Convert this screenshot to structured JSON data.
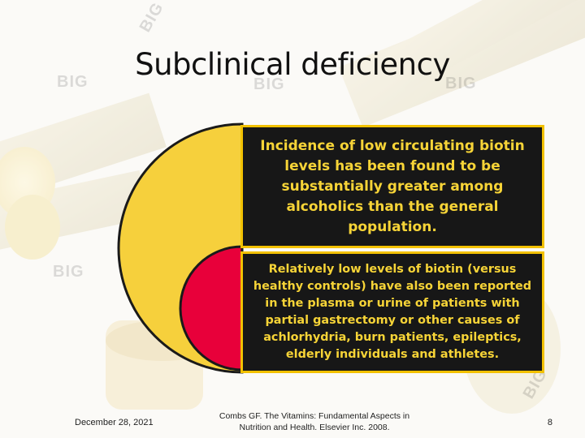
{
  "slide": {
    "title": "Subclinical deficiency",
    "box1_text": "Incidence of low circulating biotin levels has been found to be substantially greater among alcoholics than the general population.",
    "box2_text": "Relatively low levels of biotin (versus healthy controls) have also been reported in the plasma or urine of patients with partial gastrectomy or other causes of achlorhydria, burn patients, epileptics, elderly individuals and athletes."
  },
  "footer": {
    "date": "December 28, 2021",
    "reference": "Combs GF. The Vitamins: Fundamental Aspects in Nutrition and Health. Elsevier Inc. 2008.",
    "page_number": "8"
  },
  "watermark": {
    "text": "BIG"
  },
  "colors": {
    "box_fill": "#171717",
    "box_border": "#f2c100",
    "box_text": "#f7d437",
    "outer_half_disc": "#f6d03c",
    "inner_half_disc": "#e8003a"
  }
}
